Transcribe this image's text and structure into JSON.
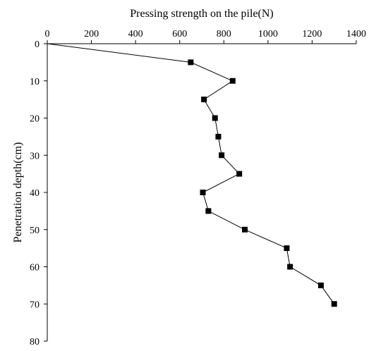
{
  "chart_data": {
    "type": "line",
    "title": "",
    "xlabel": "Pressing strength on the pile(N)",
    "ylabel": "Penetration depth(cm)",
    "xlim": [
      0,
      1400
    ],
    "ylim": [
      0,
      80
    ],
    "x_ticks": [
      0,
      200,
      400,
      600,
      800,
      1000,
      1200,
      1400
    ],
    "y_ticks": [
      0,
      10,
      20,
      30,
      40,
      50,
      60,
      70,
      80
    ],
    "x_axis_position": "top",
    "y_axis_inverted": true,
    "grid": false,
    "legend": "none",
    "marker": "square",
    "color": "#000000",
    "series": [
      {
        "points": [
          {
            "x": 0,
            "y": 0
          },
          {
            "x": 650,
            "y": 5
          },
          {
            "x": 840,
            "y": 10
          },
          {
            "x": 710,
            "y": 15
          },
          {
            "x": 760,
            "y": 20
          },
          {
            "x": 775,
            "y": 25
          },
          {
            "x": 790,
            "y": 30
          },
          {
            "x": 870,
            "y": 35
          },
          {
            "x": 705,
            "y": 40
          },
          {
            "x": 730,
            "y": 45
          },
          {
            "x": 895,
            "y": 50
          },
          {
            "x": 1085,
            "y": 55
          },
          {
            "x": 1100,
            "y": 60
          },
          {
            "x": 1240,
            "y": 65
          },
          {
            "x": 1300,
            "y": 70
          }
        ]
      }
    ]
  }
}
